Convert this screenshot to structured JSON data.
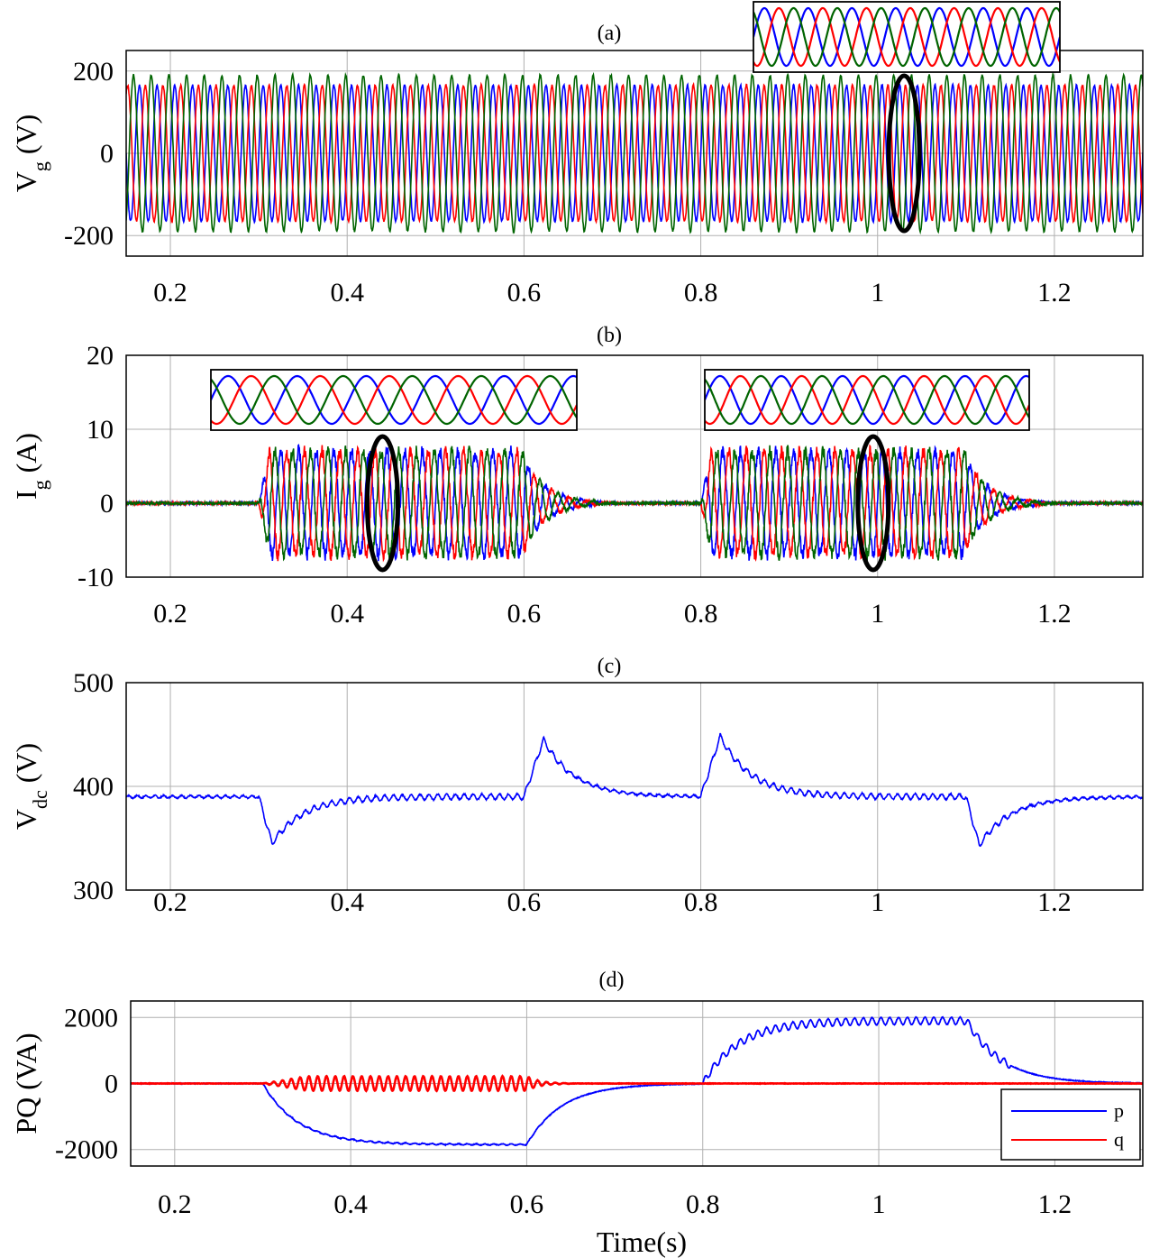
{
  "figure": {
    "xlabel": "Time(s)"
  },
  "chart_data": [
    {
      "type": "line",
      "panel_label": "(a)",
      "ylabel_main": "V",
      "ylabel_sub": "g",
      "ylabel_rest": " (V)",
      "xlim": [
        0.15,
        1.3
      ],
      "ylim": [
        -250,
        250
      ],
      "xticks": [
        0.2,
        0.4,
        0.6,
        0.8,
        1,
        1.2
      ],
      "xtick_labels": [
        "0.2",
        "0.4",
        "0.6",
        "0.8",
        "1",
        "1.2"
      ],
      "yticks": [
        -200,
        0,
        200
      ],
      "ytick_labels": [
        "-200",
        "0",
        "200"
      ],
      "grid": true,
      "description": "three-phase grid voltage, 50 Hz, peak approx 160-190 V",
      "series": [
        {
          "color": "#0000ff",
          "amplitude": 165,
          "phase_deg": 0
        },
        {
          "color": "#ff0000",
          "amplitude": 165,
          "phase_deg": -120
        },
        {
          "color": "#006400",
          "amplitude": 190,
          "phase_deg": 120
        }
      ],
      "insets": [
        {
          "x_range": [
            0.86,
            1.2
          ]
        }
      ],
      "markers": [
        {
          "x": 1.03,
          "y": 0
        }
      ]
    },
    {
      "type": "line",
      "panel_label": "(b)",
      "ylabel_main": "I",
      "ylabel_sub": "g",
      "ylabel_rest": " (A)",
      "xlim": [
        0.15,
        1.3
      ],
      "ylim": [
        -10,
        20
      ],
      "xticks": [
        0.2,
        0.4,
        0.6,
        0.8,
        1,
        1.2
      ],
      "xtick_labels": [
        "0.2",
        "0.4",
        "0.6",
        "0.8",
        "1",
        "1.2"
      ],
      "yticks": [
        -10,
        0,
        10,
        20
      ],
      "ytick_labels": [
        "-10",
        "0",
        "10",
        "20"
      ],
      "grid": true,
      "description": "three-phase grid current, amplitude approx 7 A during 0.3-0.6 s and 0.8-1.1 s",
      "intervals": [
        [
          0.3,
          0.6
        ],
        [
          0.8,
          1.1
        ]
      ],
      "amplitude": 7,
      "series": [
        {
          "color": "#0000ff",
          "phase_deg": 0
        },
        {
          "color": "#ff0000",
          "phase_deg": -120
        },
        {
          "color": "#006400",
          "phase_deg": 120
        }
      ],
      "insets": [
        {
          "x_range": [
            0.38,
            0.62
          ]
        },
        {
          "x_range": [
            0.88,
            1.12
          ]
        }
      ],
      "markers": [
        {
          "x": 0.44,
          "y": 0
        },
        {
          "x": 0.995,
          "y": 0
        }
      ]
    },
    {
      "type": "line",
      "panel_label": "(c)",
      "ylabel_main": "V",
      "ylabel_sub": "dc",
      "ylabel_rest": " (V)",
      "xlim": [
        0.15,
        1.3
      ],
      "ylim": [
        300,
        500
      ],
      "xticks": [
        0.2,
        0.4,
        0.6,
        0.8,
        1,
        1.2
      ],
      "xtick_labels": [
        "0.2",
        "0.4",
        "0.6",
        "0.8",
        "1",
        "1.2"
      ],
      "yticks": [
        300,
        400,
        500
      ],
      "ytick_labels": [
        "300",
        "400",
        "500"
      ],
      "grid": true,
      "series": [
        {
          "color": "#0000ff",
          "baseline": 390,
          "events": [
            {
              "t": 0.3,
              "peak": 345,
              "t_peak": 0.315
            },
            {
              "t": 0.6,
              "peak": 445,
              "t_peak": 0.622
            },
            {
              "t": 0.8,
              "peak": 448,
              "t_peak": 0.822
            },
            {
              "t": 1.1,
              "peak": 343,
              "t_peak": 1.115
            }
          ]
        }
      ]
    },
    {
      "type": "line",
      "panel_label": "(d)",
      "ylabel_main": "PQ (VA)",
      "xlim": [
        0.15,
        1.3
      ],
      "ylim": [
        -2500,
        2500
      ],
      "xticks": [
        0.2,
        0.4,
        0.6,
        0.8,
        1,
        1.2
      ],
      "xtick_labels": [
        "0.2",
        "0.4",
        "0.6",
        "0.8",
        "1",
        "1.2"
      ],
      "yticks": [
        -2000,
        0,
        2000
      ],
      "ytick_labels": [
        "-2000",
        "0",
        "2000"
      ],
      "grid": true,
      "legend": "bottom-right",
      "series": [
        {
          "name": "p",
          "color": "#0000ff",
          "segments": [
            {
              "t0": 0.3,
              "t1": 0.6,
              "target": -1850
            },
            {
              "t0": 0.8,
              "t1": 1.1,
              "target": 1900
            }
          ]
        },
        {
          "name": "q",
          "color": "#ff0000",
          "ripple_interval": [
            0.3,
            0.6
          ],
          "ripple_amplitude": 220
        }
      ]
    }
  ]
}
